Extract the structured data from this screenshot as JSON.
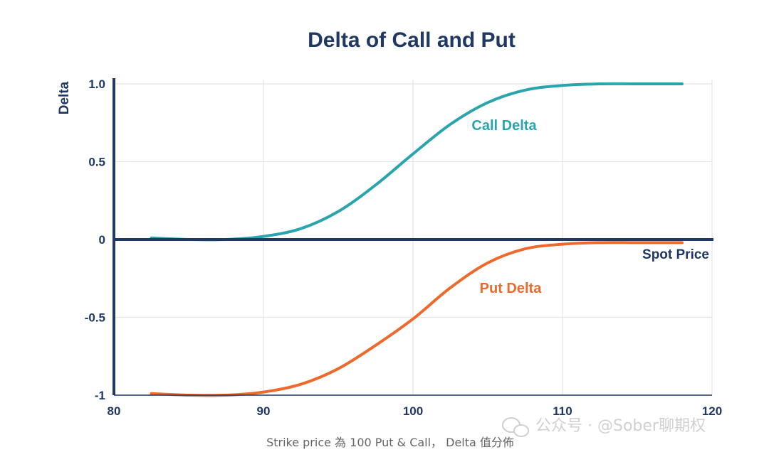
{
  "chart_data": {
    "type": "line",
    "title": "Delta of Call and Put",
    "ylabel": "Delta",
    "xlabel": "Spot Price",
    "xlim": [
      80,
      120
    ],
    "ylim": [
      -1,
      1
    ],
    "x_ticks": [
      80,
      90,
      100,
      110,
      120
    ],
    "y_ticks": [
      {
        "value": 1,
        "label": "1.0"
      },
      {
        "value": 0.5,
        "label": "0.5"
      },
      {
        "value": 0,
        "label": "0"
      },
      {
        "value": -0.5,
        "label": "-0.5"
      },
      {
        "value": -1,
        "label": "-1"
      }
    ],
    "grid": true,
    "series": [
      {
        "name": "Call Delta",
        "color": "#2aa5ad",
        "x": [
          82.5,
          85,
          87.5,
          90,
          92.5,
          95,
          97.5,
          100,
          102.5,
          105,
          107.5,
          110,
          112.5,
          115,
          118
        ],
        "y": [
          0.01,
          0.0,
          0.0,
          0.02,
          0.07,
          0.18,
          0.35,
          0.55,
          0.74,
          0.88,
          0.96,
          0.99,
          1.0,
          1.0,
          1.0
        ]
      },
      {
        "name": "Put Delta",
        "color": "#ee6a2c",
        "x": [
          82.5,
          85,
          87.5,
          90,
          92.5,
          95,
          97.5,
          100,
          102.5,
          105,
          107.5,
          110,
          112.5,
          115,
          118
        ],
        "y": [
          -0.99,
          -1.0,
          -1.0,
          -0.98,
          -0.93,
          -0.83,
          -0.68,
          -0.51,
          -0.31,
          -0.15,
          -0.06,
          -0.03,
          -0.02,
          -0.02,
          -0.02
        ]
      }
    ]
  },
  "caption": "Strike price 為 100 Put & Call， Delta 值分佈",
  "watermark": "公众号 · @Sober聊期权",
  "colors": {
    "title": "#1f3864",
    "axis": "#1f3864",
    "grid": "#e2e4ea",
    "call": "#2aa5ad",
    "put": "#ee6a2c",
    "caption": "#666666",
    "watermark": "#d0d0d0"
  }
}
